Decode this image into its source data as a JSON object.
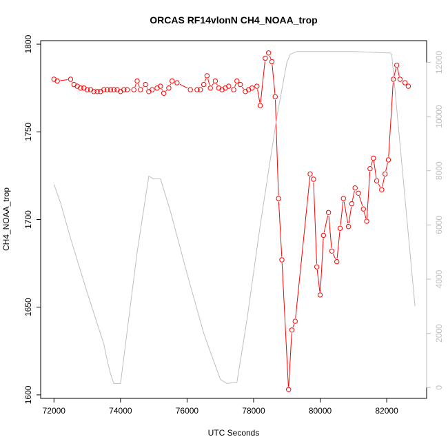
{
  "chart_data": {
    "type": "line",
    "title": "ORCAS RF14vlonN CH4_NOAA_trop",
    "xlabel": "UTC Seconds",
    "ylabel": "CH4_NOAA_trop",
    "xlim": [
      71600,
      83200
    ],
    "ylim": [
      1598,
      1802
    ],
    "ylim_right": [
      -400,
      12800
    ],
    "x_ticks": [
      72000,
      74000,
      76000,
      78000,
      80000,
      82000
    ],
    "y_ticks": [
      1600,
      1650,
      1700,
      1750,
      1800
    ],
    "y_ticks_right": [
      0,
      2000,
      4000,
      6000,
      8000,
      10000,
      12000
    ],
    "grid": false,
    "colors": {
      "ch4": "#ff0000",
      "altitude": "#bebebe"
    },
    "series": [
      {
        "style": "points-and-lines",
        "axis": "left",
        "color": "#ff0000",
        "points": [
          [
            72000,
            1780
          ],
          [
            72100,
            1779
          ],
          [
            72500,
            1780
          ],
          [
            72600,
            1777
          ],
          [
            72700,
            1776
          ],
          [
            72800,
            1775
          ],
          [
            72900,
            1775
          ],
          [
            73000,
            1774
          ],
          [
            73100,
            1774
          ],
          [
            73200,
            1773
          ],
          [
            73300,
            1773
          ],
          [
            73400,
            1773
          ],
          [
            73500,
            1774
          ],
          [
            73600,
            1774
          ],
          [
            73700,
            1774
          ],
          [
            73800,
            1774
          ],
          [
            73900,
            1774
          ],
          [
            74000,
            1773
          ],
          [
            74100,
            1774
          ],
          [
            74200,
            1774
          ],
          [
            74400,
            1774
          ],
          [
            74500,
            1779
          ],
          [
            74600,
            1774
          ],
          [
            74750,
            1777
          ],
          [
            74850,
            1773
          ],
          [
            74950,
            1774
          ],
          [
            75100,
            1775
          ],
          [
            75200,
            1776
          ],
          [
            75300,
            1772
          ],
          [
            75450,
            1775
          ],
          [
            75550,
            1779
          ],
          [
            75700,
            1778
          ],
          [
            76100,
            1774
          ],
          [
            76300,
            1774
          ],
          [
            76400,
            1774
          ],
          [
            76500,
            1777
          ],
          [
            76600,
            1782
          ],
          [
            76700,
            1775
          ],
          [
            76850,
            1779
          ],
          [
            76950,
            1775
          ],
          [
            77050,
            1774
          ],
          [
            77150,
            1775
          ],
          [
            77250,
            1776
          ],
          [
            77400,
            1774
          ],
          [
            77500,
            1779
          ],
          [
            77600,
            1777
          ],
          [
            77750,
            1773
          ],
          [
            77850,
            1774
          ],
          [
            77950,
            1775
          ],
          [
            78100,
            1776
          ],
          [
            78200,
            1765
          ],
          [
            78350,
            1792
          ],
          [
            78450,
            1795
          ],
          [
            78550,
            1790
          ],
          [
            78650,
            1770
          ],
          [
            78750,
            1712
          ],
          [
            78850,
            1677
          ],
          [
            79050,
            1603
          ],
          [
            79150,
            1637
          ],
          [
            79250,
            1642
          ],
          [
            79700,
            1726
          ],
          [
            79800,
            1723
          ],
          [
            79900,
            1673
          ],
          [
            80000,
            1657
          ],
          [
            80100,
            1691
          ],
          [
            80250,
            1704
          ],
          [
            80350,
            1682
          ],
          [
            80500,
            1676
          ],
          [
            80600,
            1695
          ],
          [
            80700,
            1712
          ],
          [
            80850,
            1696
          ],
          [
            80950,
            1709
          ],
          [
            81050,
            1718
          ],
          [
            81150,
            1715
          ],
          [
            81300,
            1706
          ],
          [
            81400,
            1699
          ],
          [
            81500,
            1729
          ],
          [
            81600,
            1735
          ],
          [
            81700,
            1722
          ],
          [
            81850,
            1717
          ],
          [
            81950,
            1726
          ],
          [
            82050,
            1734
          ],
          [
            82200,
            1780
          ],
          [
            82300,
            1788
          ],
          [
            82400,
            1780
          ],
          [
            82550,
            1778
          ],
          [
            82650,
            1776
          ]
        ]
      },
      {
        "style": "line",
        "axis": "right",
        "color": "#bebebe",
        "points": [
          [
            72000,
            7500
          ],
          [
            72200,
            6800
          ],
          [
            72500,
            5500
          ],
          [
            73000,
            3500
          ],
          [
            73500,
            1600
          ],
          [
            73600,
            1000
          ],
          [
            73700,
            500
          ],
          [
            73800,
            150
          ],
          [
            74000,
            150
          ],
          [
            74500,
            5000
          ],
          [
            74850,
            7800
          ],
          [
            75000,
            7700
          ],
          [
            75200,
            7700
          ],
          [
            75500,
            6500
          ],
          [
            76000,
            4200
          ],
          [
            76500,
            2000
          ],
          [
            77000,
            300
          ],
          [
            77200,
            150
          ],
          [
            77500,
            200
          ],
          [
            77800,
            2500
          ],
          [
            78200,
            6000
          ],
          [
            78700,
            10000
          ],
          [
            79000,
            12000
          ],
          [
            79100,
            12300
          ],
          [
            79300,
            12400
          ],
          [
            80000,
            12400
          ],
          [
            81000,
            12400
          ],
          [
            82000,
            12350
          ],
          [
            82100,
            12350
          ],
          [
            82150,
            12300
          ],
          [
            82850,
            3000
          ]
        ]
      }
    ]
  }
}
